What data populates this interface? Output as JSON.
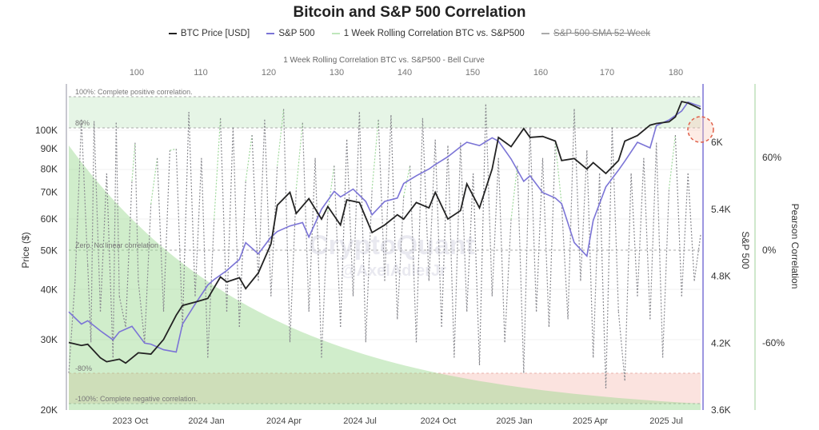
{
  "chart_data": {
    "type": "line",
    "title": "Bitcoin and S&P 500 Correlation",
    "top_axis_title": "1 Week Rolling Correlation BTC vs. S&P500 - Bell Curve",
    "legend_position": "top",
    "legend": [
      {
        "label": "BTC Price [USD]",
        "color": "#222222",
        "struck": false
      },
      {
        "label": "S&P 500",
        "color": "#7b74d6",
        "struck": false
      },
      {
        "label": "1 Week Rolling Correlation BTC vs. S&P500",
        "color": "#9ed89a",
        "struck": false
      },
      {
        "label": "S&P 500 SMA 52 Week",
        "color": "#aaaaaa",
        "struck": true
      }
    ],
    "x_labels": [
      "2023 Oct",
      "2024 Jan",
      "2024 Apr",
      "2024 Jul",
      "2024 Oct",
      "2025 Jan",
      "2025 Apr",
      "2025 Jul"
    ],
    "top_x_ticks": [
      "100",
      "110",
      "120",
      "130",
      "140",
      "150",
      "160",
      "170",
      "180"
    ],
    "y_left": {
      "label": "Price ($)",
      "scale": "log",
      "range": [
        20000,
        125000
      ],
      "ticks": [
        {
          "v": 100000,
          "t": "100K"
        },
        {
          "v": 90000,
          "t": "90K"
        },
        {
          "v": 80000,
          "t": "80K"
        },
        {
          "v": 70000,
          "t": "70K"
        },
        {
          "v": 60000,
          "t": "60K"
        },
        {
          "v": 50000,
          "t": "50K"
        },
        {
          "v": 40000,
          "t": "40K"
        },
        {
          "v": 30000,
          "t": "30K"
        },
        {
          "v": 20000,
          "t": "20K"
        }
      ]
    },
    "y_right_sp": {
      "label": "S&P 500",
      "range": [
        3600,
        6500
      ],
      "ticks": [
        {
          "v": 6000,
          "t": "6K"
        },
        {
          "v": 5400,
          "t": "5.4K"
        },
        {
          "v": 4800,
          "t": "4.8K"
        },
        {
          "v": 4200,
          "t": "4.2K"
        },
        {
          "v": 3600,
          "t": "3.6K"
        }
      ]
    },
    "y_right_corr": {
      "label": "Pearson Correlation",
      "range": [
        -100,
        100
      ],
      "ticks": [
        {
          "v": 60,
          "t": "60%"
        },
        {
          "v": 0,
          "t": "0%"
        },
        {
          "v": -60,
          "t": "-60%"
        }
      ]
    },
    "bands": [
      {
        "v": 100,
        "label": "100%: Complete positive correlation."
      },
      {
        "v": 80,
        "label": "80%"
      },
      {
        "v": 0,
        "label": "Zero. No linear correlation"
      },
      {
        "v": -80,
        "label": "-80%"
      },
      {
        "v": -100,
        "label": "-100%: Complete negative correlation."
      }
    ],
    "x_range": [
      0,
      100
    ],
    "series": [
      {
        "name": "BTC Price [USD]",
        "x": [
          0,
          2,
          3,
          5,
          6,
          8,
          9,
          11,
          13,
          15,
          17,
          18,
          20,
          22,
          24,
          25,
          27,
          28,
          30,
          32,
          33,
          35,
          36,
          38,
          40,
          41,
          43,
          44,
          46,
          48,
          50,
          52,
          53,
          55,
          57,
          58,
          60,
          62,
          63,
          65,
          67,
          68,
          70,
          72,
          73,
          75,
          77,
          78,
          80,
          82,
          83,
          85,
          87,
          88,
          90,
          92,
          93,
          95,
          96,
          97,
          98,
          99,
          100
        ],
        "y": [
          29500,
          29000,
          29200,
          27000,
          26400,
          26800,
          26200,
          27800,
          27600,
          30000,
          34500,
          36500,
          37200,
          38000,
          43000,
          41800,
          42800,
          40200,
          44000,
          52000,
          65000,
          70000,
          62000,
          67500,
          60000,
          64500,
          58000,
          67000,
          66000,
          55500,
          58000,
          61500,
          60000,
          66000,
          64000,
          70000,
          60000,
          63000,
          73500,
          64000,
          80000,
          96000,
          91000,
          101000,
          96000,
          96500,
          94000,
          84000,
          85000,
          80000,
          83000,
          78000,
          84000,
          94000,
          97000,
          103000,
          104000,
          105000,
          108000,
          118000,
          117000,
          115000,
          113000
        ]
      },
      {
        "name": "S&P 500",
        "x": [
          0,
          2,
          3,
          5,
          7,
          8,
          10,
          12,
          13,
          15,
          17,
          18,
          20,
          22,
          23,
          25,
          27,
          28,
          30,
          32,
          33,
          35,
          37,
          38,
          40,
          42,
          43,
          45,
          47,
          48,
          50,
          52,
          53,
          55,
          57,
          58,
          60,
          62,
          63,
          65,
          67,
          68,
          70,
          72,
          73,
          75,
          77,
          78,
          80,
          82,
          83,
          85,
          87,
          88,
          90,
          92,
          93,
          95,
          97,
          98,
          100
        ],
        "y": [
          4480,
          4370,
          4400,
          4310,
          4230,
          4300,
          4350,
          4200,
          4190,
          4140,
          4120,
          4370,
          4550,
          4720,
          4770,
          4850,
          4950,
          5100,
          5000,
          5150,
          5200,
          5250,
          5280,
          5150,
          5400,
          5560,
          5510,
          5580,
          5470,
          5350,
          5470,
          5500,
          5630,
          5700,
          5760,
          5800,
          5870,
          5960,
          6000,
          5970,
          6040,
          6010,
          5850,
          5650,
          5700,
          5550,
          5500,
          5450,
          5100,
          4980,
          5300,
          5600,
          5750,
          5830,
          6000,
          5950,
          6150,
          6200,
          6280,
          6360,
          6320
        ]
      },
      {
        "name": "1 Week Rolling Correlation BTC vs. S&P500",
        "x": [
          0,
          1,
          2,
          3,
          3.5,
          4,
          5,
          6,
          7,
          7.5,
          8,
          9,
          10,
          10.5,
          11,
          12,
          13,
          14,
          15,
          16,
          17,
          18,
          19,
          20,
          21,
          22,
          23,
          24,
          25,
          26,
          27,
          28,
          29,
          30,
          31,
          32,
          33,
          34,
          35,
          36,
          37,
          38,
          39,
          40,
          41,
          42,
          43,
          44,
          45,
          46,
          47,
          48,
          49,
          50,
          51,
          52,
          53,
          54,
          55,
          56,
          57,
          58,
          59,
          60,
          61,
          62,
          63,
          64,
          65,
          66,
          67,
          68,
          69,
          70,
          71,
          72,
          73,
          74,
          75,
          76,
          77,
          78,
          79,
          80,
          81,
          82,
          83,
          84,
          85,
          86,
          87,
          88,
          89,
          90,
          91,
          92,
          93,
          94,
          95,
          96,
          97,
          98,
          99,
          100
        ],
        "y": [
          -80,
          -20,
          85,
          -10,
          -60,
          84,
          -40,
          50,
          -70,
          83,
          -30,
          -50,
          45,
          70,
          -20,
          -60,
          30,
          60,
          -40,
          65,
          66,
          -50,
          90,
          -30,
          60,
          -70,
          20,
          86,
          -40,
          80,
          -50,
          45,
          75,
          -20,
          85,
          -30,
          55,
          92,
          -60,
          40,
          83,
          -40,
          60,
          -70,
          25,
          55,
          -50,
          72,
          -30,
          90,
          -60,
          40,
          85,
          -20,
          88,
          -45,
          35,
          55,
          -60,
          86,
          -20,
          72,
          -50,
          68,
          -70,
          70,
          -40,
          50,
          -75,
          95,
          -30,
          60,
          -60,
          20,
          55,
          -80,
          80,
          -40,
          60,
          -50,
          70,
          30,
          -45,
          92,
          -20,
          65,
          -70,
          50,
          -90,
          80,
          -40,
          -85,
          50,
          -30,
          60,
          -45,
          70,
          -70,
          40,
          75,
          -30,
          50,
          -20,
          10
        ]
      }
    ],
    "bell_curve": {
      "description_values_corr_pct": [
        58,
        30,
        0,
        -30,
        -60,
        -85,
        -95
      ]
    },
    "annotations": {
      "watermark": "CryptoQuant",
      "watermark_handle": "@AxelAdlerJr"
    }
  }
}
